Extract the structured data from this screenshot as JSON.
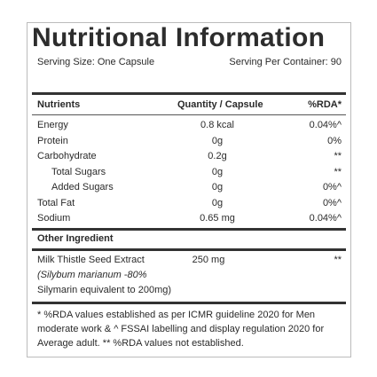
{
  "title": "Nutritional Information",
  "serving_size": "Serving Size: One Capsule",
  "serving_per_container": "Serving Per Container: 90",
  "table": {
    "header": [
      "Nutrients",
      "Quantity / Capsule",
      "%RDA*"
    ],
    "rows": [
      [
        "Energy",
        "0.8 kcal",
        "0.04%^"
      ],
      [
        "Protein",
        "0g",
        "0%"
      ],
      [
        "Carbohydrate",
        "0.2g",
        "**"
      ],
      [
        "Total Sugars",
        "0g",
        "**"
      ],
      [
        "Added Sugars",
        "0g",
        "0%^"
      ],
      [
        "Total Fat",
        "0g",
        "0%^"
      ],
      [
        "Sodium",
        "0.65 mg",
        "0.04%^"
      ]
    ]
  },
  "other_ingredient": {
    "heading": "Other Ingredient",
    "name_lines": [
      "Milk Thistle Seed Extract",
      "(Silybum marianum -80%",
      "Silymarin equivalent to 200mg)"
    ],
    "quantity": "250 mg",
    "rda": "**"
  },
  "footnote": "* %RDA values established as per ICMR guideline 2020 for Men moderate work & ^ FSSAI labelling and display regulation 2020 for Average adult. ** %RDA values not established."
}
